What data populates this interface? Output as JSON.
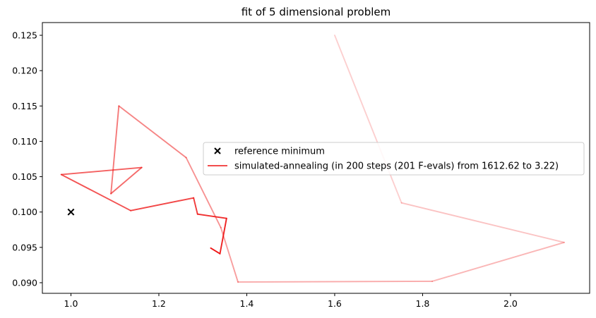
{
  "chart_data": {
    "type": "line",
    "title": "fit of 5 dimensional problem",
    "xlabel": "",
    "ylabel": "",
    "xlim": [
      0.935,
      2.18
    ],
    "ylim": [
      0.0885,
      0.1268
    ],
    "xticks": [
      1.0,
      1.2,
      1.4,
      1.6,
      1.8,
      2.0
    ],
    "xtick_labels": [
      "1.0",
      "1.2",
      "1.4",
      "1.6",
      "1.8",
      "2.0"
    ],
    "yticks": [
      0.09,
      0.095,
      0.1,
      0.105,
      0.11,
      0.115,
      0.12,
      0.125
    ],
    "ytick_labels": [
      "0.090",
      "0.095",
      "0.100",
      "0.105",
      "0.110",
      "0.115",
      "0.120",
      "0.125"
    ],
    "grid": false,
    "legend_position": "center-right",
    "reference_minimum": {
      "name": "reference minimum",
      "x": 1.0,
      "y": 0.1,
      "marker": "x",
      "color": "#000000"
    },
    "series": [
      {
        "name": "simulated-annealing (in 200 steps (201 F-evals) from 1612.62 to 3.22)",
        "color": "#ee1111",
        "x": [
          1.6,
          1.752,
          2.122,
          1.822,
          1.38,
          1.341,
          1.262,
          1.109,
          1.091,
          1.161,
          0.978,
          1.136,
          1.279,
          1.288,
          1.354,
          1.339,
          1.318
        ],
        "y": [
          0.125,
          0.1013,
          0.0957,
          0.0902,
          0.0901,
          0.0978,
          0.1077,
          0.115,
          0.1026,
          0.1063,
          0.1053,
          0.1002,
          0.102,
          0.0997,
          0.0991,
          0.0941,
          0.0949
        ]
      }
    ]
  }
}
